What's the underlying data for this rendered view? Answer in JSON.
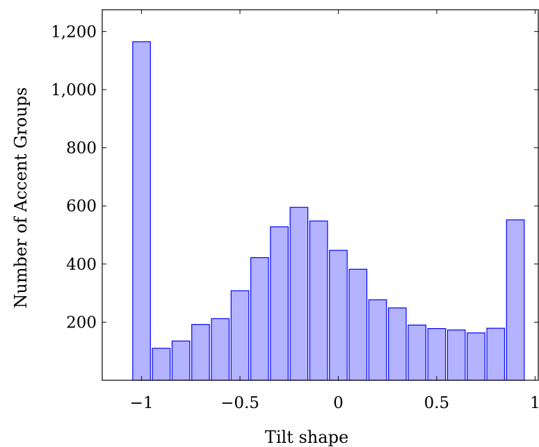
{
  "chart_data": {
    "type": "bar",
    "title": "",
    "xlabel": "Tilt shape",
    "ylabel": "Number of Accent Groups",
    "x": [
      -1.0,
      -0.9,
      -0.8,
      -0.7,
      -0.6,
      -0.5,
      -0.4,
      -0.3,
      -0.2,
      -0.1,
      0.0,
      0.1,
      0.2,
      0.3,
      0.4,
      0.5,
      0.6,
      0.7,
      0.8,
      0.9
    ],
    "values": [
      1165,
      110,
      135,
      192,
      212,
      308,
      422,
      528,
      595,
      548,
      447,
      382,
      277,
      249,
      190,
      178,
      173,
      163,
      179,
      552
    ],
    "xlim": [
      -1.2,
      1.02
    ],
    "ylim": [
      0,
      1275
    ],
    "xticks": [
      -1,
      -0.5,
      0,
      0.5,
      1
    ],
    "xtick_labels": [
      "−1",
      "−0.5",
      "0",
      "0.5",
      "1"
    ],
    "yticks": [
      200,
      400,
      600,
      800,
      1000,
      1200
    ],
    "ytick_labels": [
      "200",
      "400",
      "600",
      "800",
      "1,000",
      "1,200"
    ],
    "grid": false,
    "colors": {
      "bar_fill": "#b3b3ff",
      "bar_stroke": "#0000ff"
    }
  }
}
